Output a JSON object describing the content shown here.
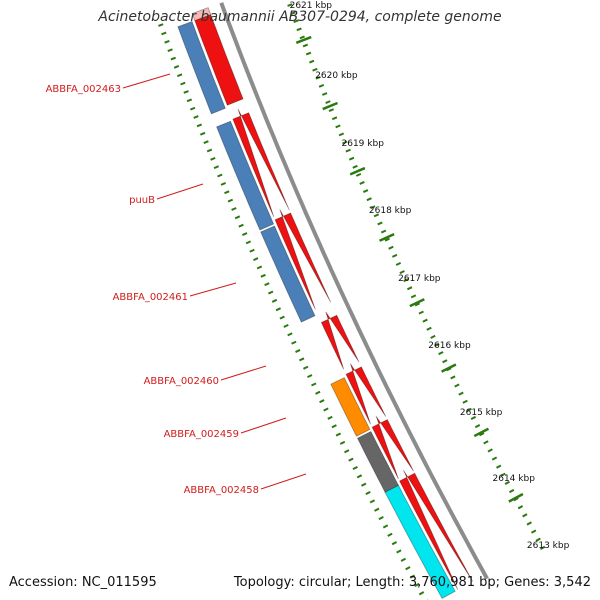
{
  "title": "Acinetobacter baumannii AB307-0294, complete genome",
  "footer": {
    "accession_label": "Accession: NC_011595",
    "topology_label": "Topology: circular; Length: 3,760,981 bp; Genes: 3,542"
  },
  "scale": {
    "ticks": [
      {
        "label": "2621 kbp"
      },
      {
        "label": "2620 kbp"
      },
      {
        "label": "2619 kbp"
      },
      {
        "label": "2618 kbp"
      },
      {
        "label": "2617 kbp"
      },
      {
        "label": "2616 kbp"
      },
      {
        "label": "2615 kbp"
      },
      {
        "label": "2614 kbp"
      },
      {
        "label": "2613 kbp"
      }
    ]
  },
  "gene_labels": [
    {
      "text": "ABBFA_002463"
    },
    {
      "text": "puuB"
    },
    {
      "text": "ABBFA_002461"
    },
    {
      "text": "ABBFA_002460"
    },
    {
      "text": "ABBFA_002459"
    },
    {
      "text": "ABBFA_002458"
    }
  ],
  "colors": {
    "backbone": "#8c8c8c",
    "cds": "#ee1111",
    "gene_steelblue": "#4a7fb8",
    "gene_orange": "#ff8c00",
    "gene_gray": "#666666",
    "gene_cyan": "#00e5ee",
    "gene_light": "#f4b8b8",
    "tick": "#2a7a10",
    "label": "#d11c1c"
  }
}
